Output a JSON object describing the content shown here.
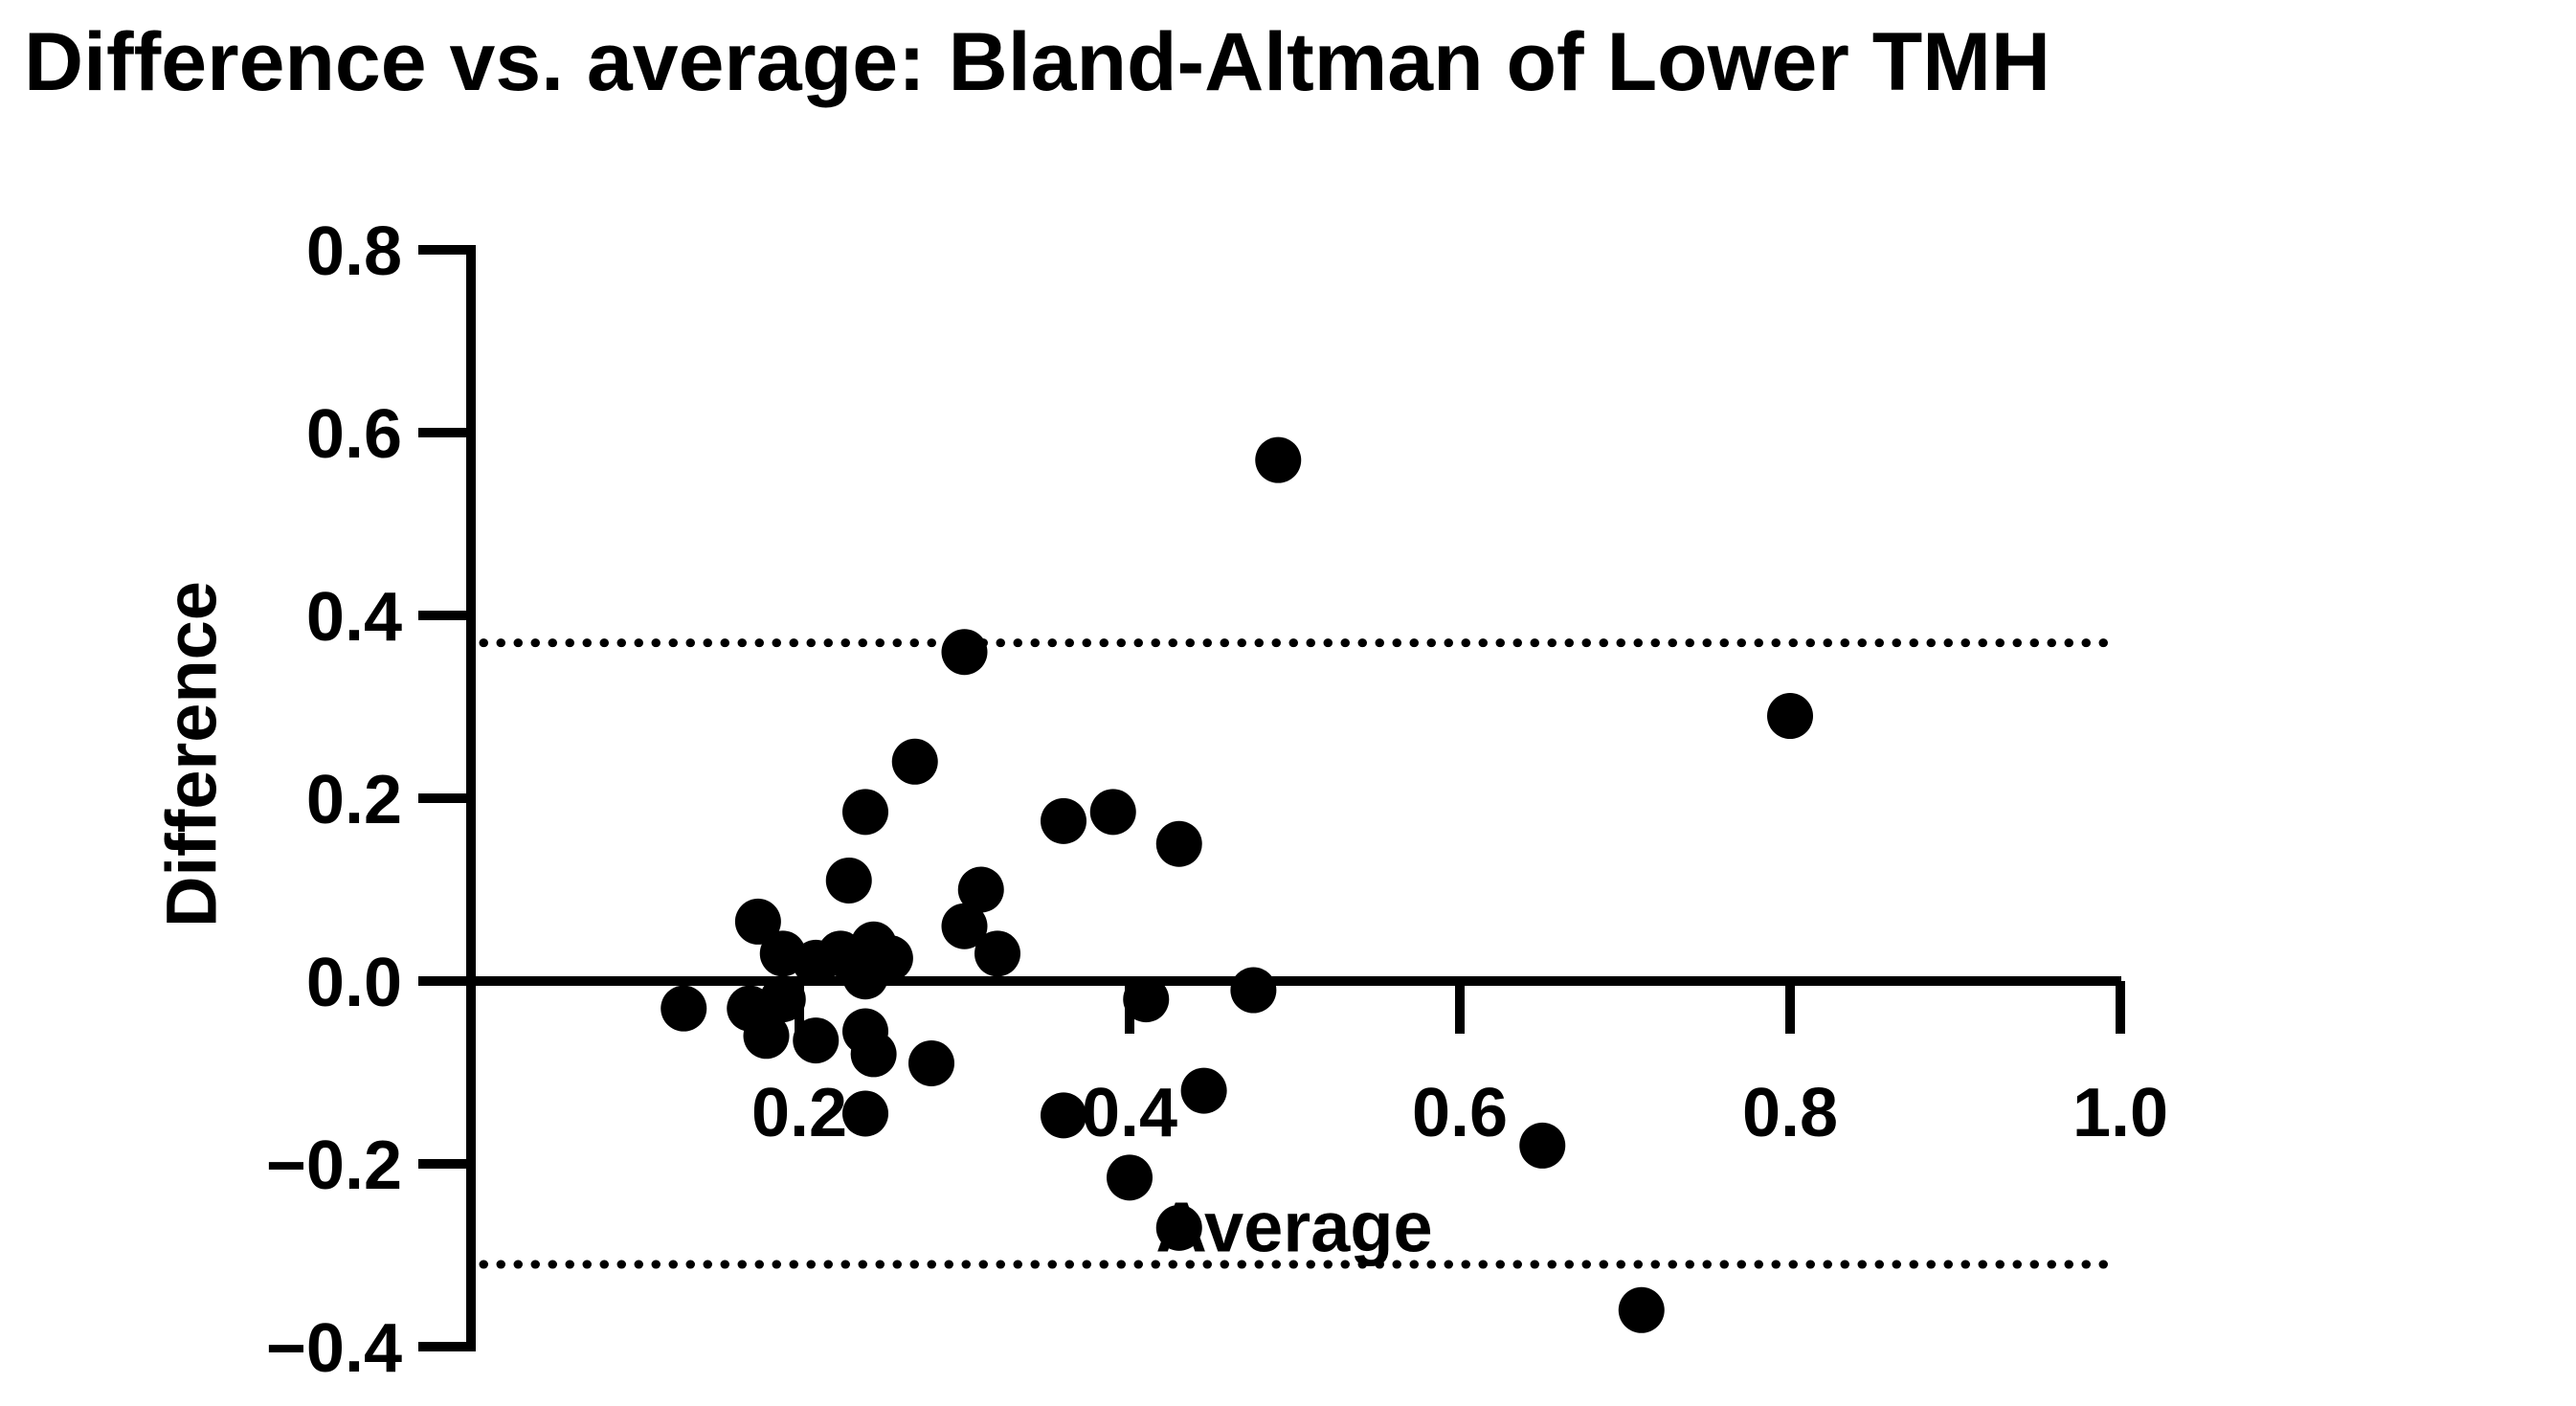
{
  "page": {
    "background_color": "#ffffff",
    "foreground_color": "#000000"
  },
  "chart_data": {
    "type": "scatter",
    "title": "Difference vs. average: Bland-Altman of Lower TMH",
    "xlabel": "Average",
    "ylabel": "Difference",
    "xlim": [
      0.0,
      1.0
    ],
    "ylim": [
      -0.4,
      0.8
    ],
    "x_ticks": [
      0.2,
      0.4,
      0.6,
      0.8,
      1.0
    ],
    "x_tick_labels": [
      "0.2",
      "0.4",
      "0.6",
      "0.8",
      "1.0"
    ],
    "y_ticks": [
      0.8,
      0.6,
      0.4,
      0.2,
      0.0,
      -0.2,
      -0.4
    ],
    "y_tick_labels": [
      "0.8",
      "0.6",
      "0.4",
      "0.2",
      "0.0",
      "−0.2",
      "−0.4"
    ],
    "grid": false,
    "legend": null,
    "marker": {
      "shape": "circle",
      "color": "#000000"
    },
    "reference_lines": [
      {
        "name": "zero-line",
        "y": 0.0,
        "style": "solid"
      },
      {
        "name": "upper-limit-of-agreement",
        "y": 0.37,
        "style": "dotted"
      },
      {
        "name": "lower-limit-of-agreement",
        "y": -0.31,
        "style": "dotted"
      }
    ],
    "points": [
      [
        0.13,
        -0.03
      ],
      [
        0.175,
        0.065
      ],
      [
        0.19,
        0.03
      ],
      [
        0.21,
        0.02
      ],
      [
        0.225,
        0.03
      ],
      [
        0.245,
        0.04
      ],
      [
        0.255,
        0.025
      ],
      [
        0.24,
        0.005
      ],
      [
        0.17,
        -0.03
      ],
      [
        0.19,
        -0.02
      ],
      [
        0.18,
        -0.06
      ],
      [
        0.21,
        -0.065
      ],
      [
        0.24,
        -0.055
      ],
      [
        0.245,
        -0.08
      ],
      [
        0.28,
        -0.09
      ],
      [
        0.24,
        -0.145
      ],
      [
        0.23,
        0.11
      ],
      [
        0.24,
        0.185
      ],
      [
        0.27,
        0.24
      ],
      [
        0.3,
        0.36
      ],
      [
        0.31,
        0.1
      ],
      [
        0.3,
        0.06
      ],
      [
        0.32,
        0.03
      ],
      [
        0.36,
        0.175
      ],
      [
        0.39,
        0.185
      ],
      [
        0.43,
        0.15
      ],
      [
        0.49,
        0.57
      ],
      [
        0.8,
        0.29
      ],
      [
        0.41,
        -0.02
      ],
      [
        0.475,
        -0.01
      ],
      [
        0.445,
        -0.12
      ],
      [
        0.36,
        -0.147
      ],
      [
        0.4,
        -0.215
      ],
      [
        0.43,
        -0.27
      ],
      [
        0.65,
        -0.18
      ],
      [
        0.71,
        -0.36
      ]
    ]
  }
}
